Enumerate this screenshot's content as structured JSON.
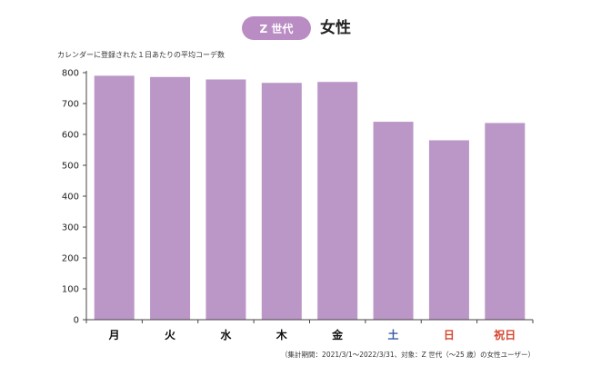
{
  "header": {
    "badge": "Z 世代",
    "title": "女性"
  },
  "chart_data": {
    "type": "bar",
    "ylabel": "カレンダーに登録された１日あたりの平均コーデ数",
    "categories": [
      "月",
      "火",
      "水",
      "木",
      "金",
      "土",
      "日",
      "祝日"
    ],
    "category_colors": [
      "#111111",
      "#111111",
      "#111111",
      "#111111",
      "#111111",
      "#3a5ba8",
      "#d3452f",
      "#d3452f"
    ],
    "values": [
      790,
      786,
      778,
      767,
      770,
      641,
      581,
      637
    ],
    "ylim": [
      0,
      800
    ],
    "yticks": [
      0,
      100,
      200,
      300,
      400,
      500,
      600,
      700,
      800
    ],
    "grid": false,
    "bar_color": "#bb97c7",
    "footnote": "（集計期間：2021/3/1〜2022/3/31、対象：Z 世代（〜25 歳）の女性ユーザー）"
  },
  "colors": {
    "accent": "#b98cc4",
    "bar": "#bb97c7",
    "axis": "#444444"
  }
}
